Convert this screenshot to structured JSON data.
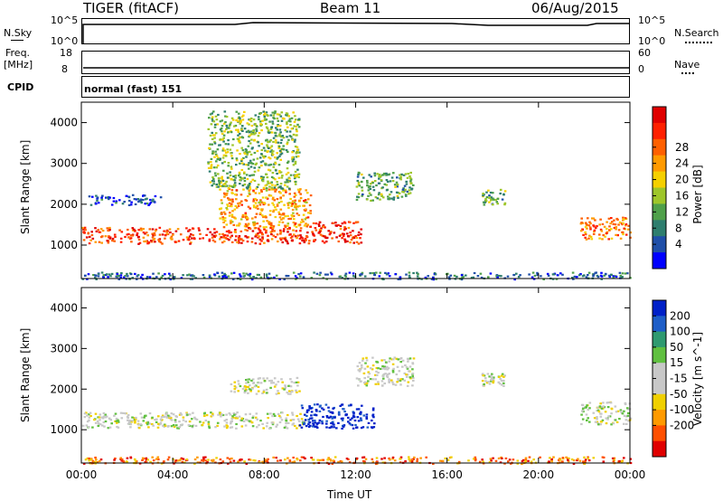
{
  "header": {
    "radar": "TIGER (fitACF)",
    "beam": "Beam 11",
    "date": "06/Aug/2015"
  },
  "top_panels": {
    "nsky_label": "N.Sky",
    "nsky_ticks": [
      "10^5",
      "10^0"
    ],
    "nsearch_label": "N.Search",
    "nsearch_ticks": [
      "10^5",
      "10^0"
    ],
    "freq_label_1": "Freq.",
    "freq_label_2": "[MHz]",
    "freq_ticks": [
      "18",
      "8"
    ],
    "nave_label": "Nave",
    "nave_ticks": [
      "60",
      "0"
    ],
    "cpid_label": "CPID",
    "cpid_text": "normal (fast) 151"
  },
  "chart_data": [
    {
      "type": "heatmap",
      "name": "power",
      "ylabel": "Slant Range [km]",
      "xlabel": "Time UT",
      "x_ticks": [
        "00:00",
        "04:00",
        "08:00",
        "12:00",
        "16:00",
        "20:00",
        "00:00"
      ],
      "x_range_hours": [
        0,
        24
      ],
      "y_ticks": [
        1000,
        2000,
        3000,
        4000
      ],
      "y_range_km": [
        180,
        4500
      ],
      "colorbar_label": "Power [dB]",
      "colorbar_ticks": [
        "4",
        "8",
        "12",
        "16",
        "20",
        "24",
        "28"
      ],
      "colorbar_colors": [
        "#0000ff",
        "#1f4fa8",
        "#2e7e6e",
        "#4fa04a",
        "#9ec62a",
        "#f5d000",
        "#ff9a00",
        "#ff6000",
        "#ff2000",
        "#e00000"
      ],
      "regions": [
        {
          "t": [
            0.0,
            9.8
          ],
          "r": [
            1050,
            1450
          ],
          "level": 0.82
        },
        {
          "t": [
            6.0,
            10.0
          ],
          "r": [
            1450,
            2400
          ],
          "level": 0.65
        },
        {
          "t": [
            0.3,
            3.5
          ],
          "r": [
            2000,
            2250
          ],
          "level": 0.15
        },
        {
          "t": [
            5.5,
            9.5
          ],
          "r": [
            2400,
            4300
          ],
          "level": 0.4
        },
        {
          "t": [
            9.8,
            12.2
          ],
          "r": [
            1050,
            1600
          ],
          "level": 0.85
        },
        {
          "t": [
            12.0,
            14.5
          ],
          "r": [
            2100,
            2800
          ],
          "level": 0.35
        },
        {
          "t": [
            17.5,
            18.5
          ],
          "r": [
            2000,
            2400
          ],
          "level": 0.35
        },
        {
          "t": [
            21.8,
            24.0
          ],
          "r": [
            1150,
            1700
          ],
          "level": 0.7
        },
        {
          "t": [
            0.0,
            24.0
          ],
          "r": [
            180,
            350
          ],
          "level": 0.2
        }
      ]
    },
    {
      "type": "heatmap",
      "name": "velocity",
      "ylabel": "Slant Range [km]",
      "xlabel": "Time UT",
      "x_ticks": [
        "00:00",
        "04:00",
        "08:00",
        "12:00",
        "16:00",
        "20:00",
        "00:00"
      ],
      "x_range_hours": [
        0,
        24
      ],
      "y_ticks": [
        1000,
        2000,
        3000,
        4000
      ],
      "y_range_km": [
        180,
        4500
      ],
      "colorbar_label": "Velocity [m s^-1]",
      "colorbar_ticks": [
        "200",
        "100",
        "50",
        "15",
        "-15",
        "-50",
        "-100",
        "-200"
      ],
      "colorbar_colors": [
        "#0020c8",
        "#1e5ec8",
        "#2f9a70",
        "#60c040",
        "#c8c8c8",
        "#c8c8c8",
        "#f0d000",
        "#ff9a00",
        "#ff5000",
        "#e00000"
      ],
      "regions": [
        {
          "t": [
            0.0,
            9.8
          ],
          "r": [
            1050,
            1450
          ],
          "level": 0.5
        },
        {
          "t": [
            9.5,
            12.8
          ],
          "r": [
            1050,
            1650
          ],
          "level": 0.02
        },
        {
          "t": [
            6.5,
            9.5
          ],
          "r": [
            1900,
            2300
          ],
          "level": 0.5
        },
        {
          "t": [
            12.0,
            14.5
          ],
          "r": [
            2100,
            2800
          ],
          "level": 0.5
        },
        {
          "t": [
            17.5,
            18.5
          ],
          "r": [
            2100,
            2400
          ],
          "level": 0.5
        },
        {
          "t": [
            21.8,
            24.0
          ],
          "r": [
            1150,
            1700
          ],
          "level": 0.5
        },
        {
          "t": [
            0.0,
            24.0
          ],
          "r": [
            180,
            350
          ],
          "level": 0.8
        }
      ]
    }
  ]
}
